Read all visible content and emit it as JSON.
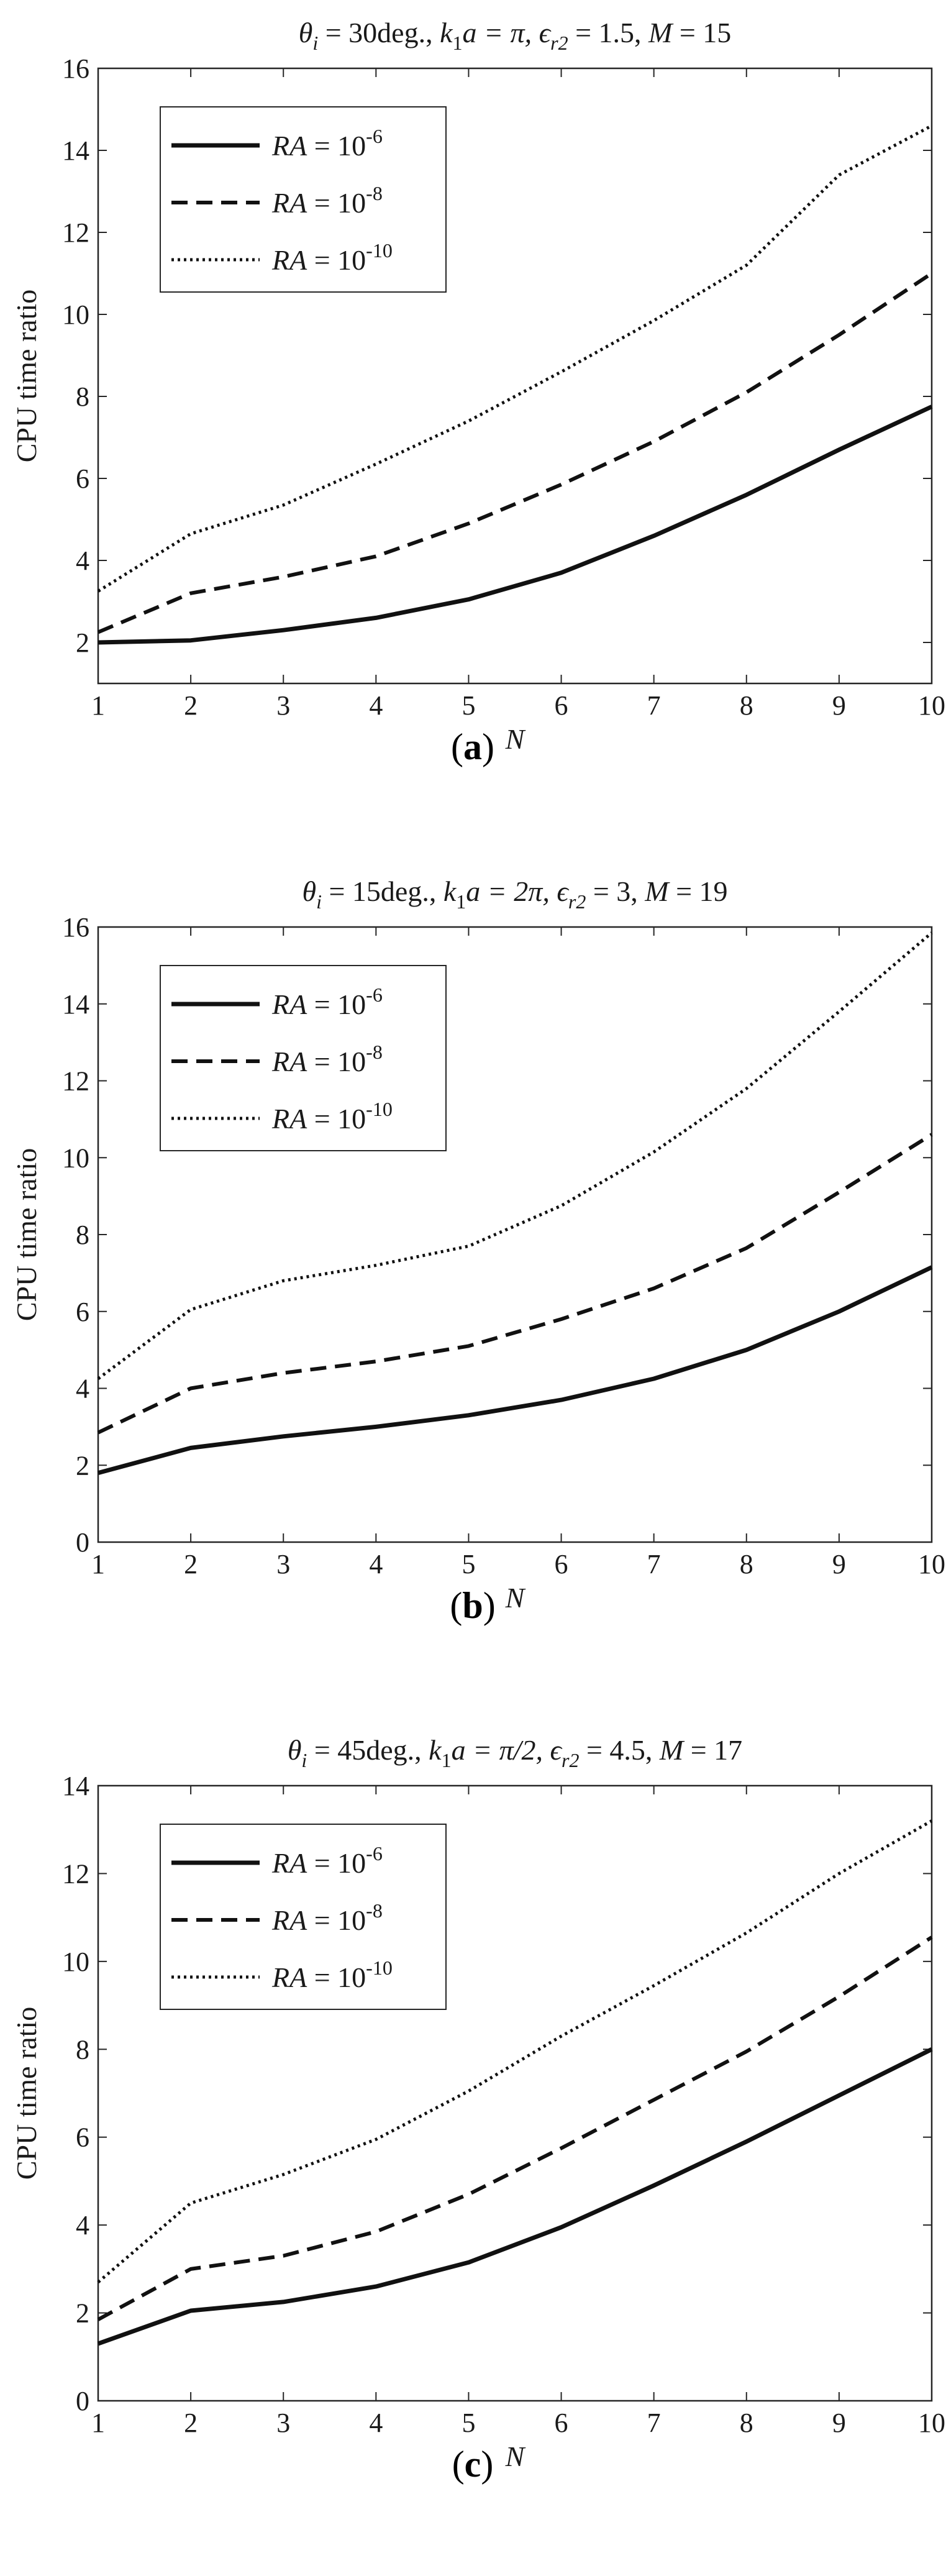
{
  "chart_data": [
    {
      "type": "line",
      "panel_label": "a",
      "title_parts": {
        "theta_sym": "θ",
        "theta_sub": "i",
        "theta_rest": " = 30deg.,  ",
        "k_sym": "k",
        "k_sub": "1",
        "k_rest": "a = π, ",
        "eps_sym": "ϵ",
        "eps_sub": "r2",
        "eps_rest": " = 1.5, ",
        "m_sym": "M",
        "m_rest": " = 15"
      },
      "xlabel": "N",
      "ylabel": "CPU time ratio",
      "xlim": [
        1,
        10
      ],
      "ylim": [
        1,
        16
      ],
      "xticks": [
        1,
        2,
        3,
        4,
        5,
        6,
        7,
        8,
        9,
        10
      ],
      "yticks": [
        2,
        4,
        6,
        8,
        10,
        12,
        14,
        16
      ],
      "x": [
        1,
        2,
        3,
        4,
        5,
        6,
        7,
        8,
        9,
        10
      ],
      "legend_position": "top-left",
      "series": [
        {
          "name": "RA = 10^-6",
          "legend_ra": "RA",
          "legend_eq": " = 10",
          "legend_exp": "-6",
          "style": "solid",
          "values": [
            2.0,
            2.05,
            2.3,
            2.6,
            3.05,
            3.7,
            4.6,
            5.6,
            6.7,
            7.75
          ]
        },
        {
          "name": "RA = 10^-8",
          "legend_ra": "RA",
          "legend_eq": " = 10",
          "legend_exp": "-8",
          "style": "dashed",
          "values": [
            2.25,
            3.2,
            3.6,
            4.1,
            4.9,
            5.85,
            6.9,
            8.1,
            9.5,
            11.0
          ]
        },
        {
          "name": "RA = 10^-10",
          "legend_ra": "RA",
          "legend_eq": " = 10",
          "legend_exp": "-10",
          "style": "dotted",
          "values": [
            3.25,
            4.65,
            5.35,
            6.35,
            7.4,
            8.6,
            9.85,
            11.2,
            13.4,
            14.6
          ]
        }
      ]
    },
    {
      "type": "line",
      "panel_label": "b",
      "title_parts": {
        "theta_sym": "θ",
        "theta_sub": "i",
        "theta_rest": " = 15deg., ",
        "k_sym": "k",
        "k_sub": "1",
        "k_rest": "a = 2π, ",
        "eps_sym": "ϵ",
        "eps_sub": "r2",
        "eps_rest": " = 3, ",
        "m_sym": "M",
        "m_rest": " = 19"
      },
      "xlabel": "N",
      "ylabel": "CPU time ratio",
      "xlim": [
        1,
        10
      ],
      "ylim": [
        0,
        16
      ],
      "xticks": [
        1,
        2,
        3,
        4,
        5,
        6,
        7,
        8,
        9,
        10
      ],
      "yticks": [
        0,
        2,
        4,
        6,
        8,
        10,
        12,
        14,
        16
      ],
      "x": [
        1,
        2,
        3,
        4,
        5,
        6,
        7,
        8,
        9,
        10
      ],
      "legend_position": "top-left",
      "series": [
        {
          "name": "RA = 10^-6",
          "legend_ra": "RA",
          "legend_eq": " = 10",
          "legend_exp": "-6",
          "style": "solid",
          "values": [
            1.8,
            2.45,
            2.75,
            3.0,
            3.3,
            3.7,
            4.25,
            5.0,
            6.0,
            7.15
          ]
        },
        {
          "name": "RA = 10^-8",
          "legend_ra": "RA",
          "legend_eq": " = 10",
          "legend_exp": "-8",
          "style": "dashed",
          "values": [
            2.85,
            4.0,
            4.4,
            4.7,
            5.1,
            5.8,
            6.6,
            7.65,
            9.1,
            10.6
          ]
        },
        {
          "name": "RA = 10^-10",
          "legend_ra": "RA",
          "legend_eq": " = 10",
          "legend_exp": "-10",
          "style": "dotted",
          "values": [
            4.25,
            6.05,
            6.8,
            7.2,
            7.7,
            8.75,
            10.15,
            11.8,
            13.8,
            15.85
          ]
        }
      ]
    },
    {
      "type": "line",
      "panel_label": "c",
      "title_parts": {
        "theta_sym": "θ",
        "theta_sub": "i",
        "theta_rest": " = 45deg., ",
        "k_sym": "k",
        "k_sub": "1",
        "k_rest": "a = π/2, ",
        "eps_sym": "ϵ",
        "eps_sub": "r2",
        "eps_rest": " = 4.5, ",
        "m_sym": "M",
        "m_rest": " = 17"
      },
      "xlabel": "N",
      "ylabel": "CPU time ratio",
      "xlim": [
        1,
        10
      ],
      "ylim": [
        0,
        14
      ],
      "xticks": [
        1,
        2,
        3,
        4,
        5,
        6,
        7,
        8,
        9,
        10
      ],
      "yticks": [
        0,
        2,
        4,
        6,
        8,
        10,
        12,
        14
      ],
      "x": [
        1,
        2,
        3,
        4,
        5,
        6,
        7,
        8,
        9,
        10
      ],
      "legend_position": "top-left",
      "series": [
        {
          "name": "RA = 10^-6",
          "legend_ra": "RA",
          "legend_eq": " = 10",
          "legend_exp": "-6",
          "style": "solid",
          "values": [
            1.3,
            2.05,
            2.25,
            2.6,
            3.15,
            3.95,
            4.9,
            5.9,
            6.95,
            8.0
          ]
        },
        {
          "name": "RA = 10^-8",
          "legend_ra": "RA",
          "legend_eq": " = 10",
          "legend_exp": "-8",
          "style": "dashed",
          "values": [
            1.85,
            3.0,
            3.3,
            3.85,
            4.7,
            5.75,
            6.85,
            7.95,
            9.2,
            10.55
          ]
        },
        {
          "name": "RA = 10^-10",
          "legend_ra": "RA",
          "legend_eq": " = 10",
          "legend_exp": "-10",
          "style": "dotted",
          "values": [
            2.7,
            4.5,
            5.15,
            5.95,
            7.05,
            8.3,
            9.45,
            10.65,
            12.0,
            13.2
          ]
        }
      ]
    }
  ]
}
